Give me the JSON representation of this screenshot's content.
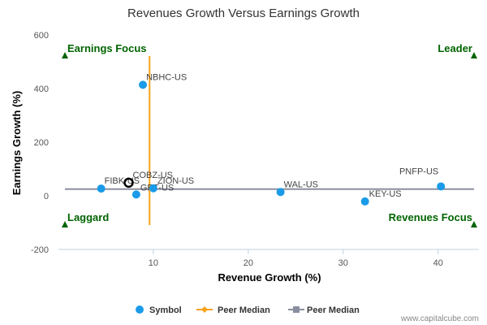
{
  "chart_data": {
    "type": "scatter",
    "title": "Revenues Growth Versus Earnings Growth",
    "xlabel": "Revenue Growth (%)",
    "ylabel": "Earnings Growth (%)",
    "xlim": [
      0,
      44.3
    ],
    "ylim": [
      -200,
      600
    ],
    "x_ticks": [
      10,
      20,
      30,
      40
    ],
    "y_ticks": [
      -200,
      0,
      200,
      400,
      600
    ],
    "grid": false,
    "points": [
      {
        "label": "NBHC-US",
        "x": 8.9,
        "y": 414
      },
      {
        "label": "FIBK-US",
        "x": 4.5,
        "y": 27
      },
      {
        "label": "COBZ-US",
        "x": 7.4,
        "y": 49,
        "highlight": true
      },
      {
        "label": "GRT-US",
        "x": 8.2,
        "y": 5
      },
      {
        "label": "ZION-US",
        "x": 10.0,
        "y": 28
      },
      {
        "label": "WAL-US",
        "x": 23.4,
        "y": 14
      },
      {
        "label": "KEY-US",
        "x": 32.3,
        "y": -21
      },
      {
        "label": "PNFP-US",
        "x": 40.3,
        "y": 35
      }
    ],
    "peer_median": {
      "x": 9.6,
      "y": 25
    },
    "quadrants": {
      "top_left": "Earnings Focus",
      "top_right": "Leader",
      "bottom_left": "Laggard",
      "bottom_right": "Revenues Focus"
    },
    "legend": {
      "position": "bottom",
      "items": [
        {
          "name": "Symbol",
          "color": "#1a9be8",
          "marker": "circle"
        },
        {
          "name": "Peer Median",
          "color": "#f7a21b",
          "marker": "diamond"
        },
        {
          "name": "Peer Median",
          "color": "#8a8fa0",
          "marker": "square"
        }
      ]
    },
    "colors": {
      "point": "#1a9be8",
      "vertical_median": "#f7a21b",
      "horizontal_median": "#8a8fa0",
      "quadrant_text": "#006400",
      "highlight_ring": "#000000"
    }
  },
  "watermark": "www.capitalcube.com"
}
